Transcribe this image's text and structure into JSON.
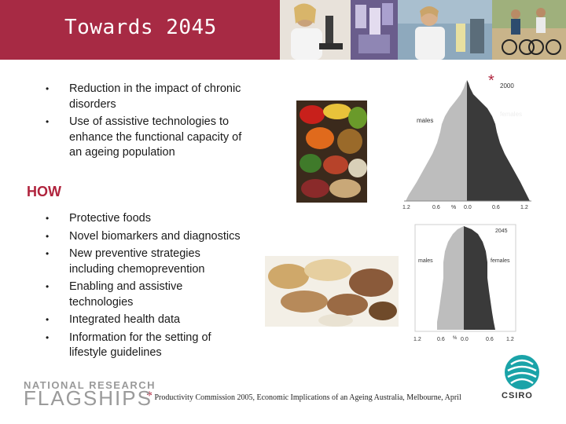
{
  "header": {
    "title": "Towards 2045"
  },
  "intro_points": [
    "Reduction in the impact of chronic disorders",
    "Use of assistive technologies to enhance the functional capacity of an ageing population"
  ],
  "how": {
    "heading": "HOW",
    "points": [
      "Protective foods",
      "Novel biomarkers and diagnostics",
      "New preventive strategies including chemoprevention",
      "Enabling and assistive technologies",
      "Integrated health data",
      "Information for the setting of lifestyle guidelines"
    ]
  },
  "bullet_glyph": "•",
  "pyramid_2000": {
    "year": "2000",
    "left_label": "males",
    "right_label": "females",
    "ticks": [
      "1.2",
      "0.6",
      "%",
      "0.0",
      "0.6",
      "1.2"
    ],
    "marker": "*"
  },
  "pyramid_2045": {
    "year": "2045",
    "left_label": "males",
    "right_label": "females",
    "ticks": [
      "1.2",
      "0.6",
      "%",
      "0.0",
      "0.6",
      "1.2"
    ]
  },
  "footnote": {
    "star": "*",
    "text": "Productivity Commission 2005, Economic Implications of an Ageing Australia, Melbourne, April"
  },
  "logos": {
    "flagships_top": "NATIONAL RESEARCH",
    "flagships_bottom": "FLAGSHIPS",
    "csiro": "CSIRO"
  },
  "colors": {
    "banner": "#a72a44",
    "accent": "#b0243d",
    "males": "#bdbdbd",
    "females": "#3a3a3a"
  }
}
